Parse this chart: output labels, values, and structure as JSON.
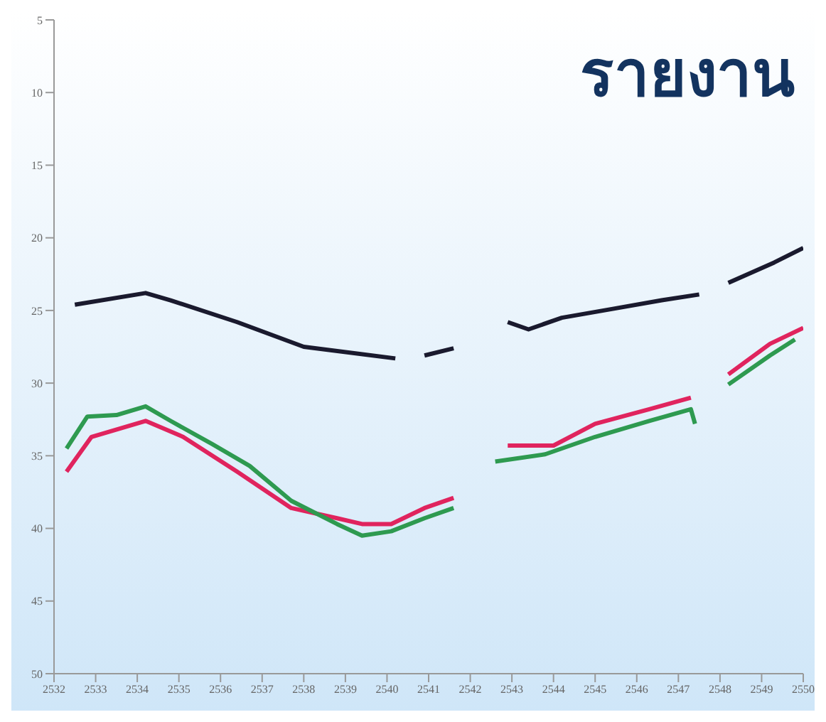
{
  "chart_data": {
    "type": "line",
    "title": "รายงาน",
    "xlim": [
      2532,
      2550
    ],
    "xticks": [
      2532,
      2533,
      2534,
      2535,
      2536,
      2537,
      2538,
      2539,
      2540,
      2541,
      2542,
      2543,
      2544,
      2545,
      2546,
      2547,
      2548,
      2549,
      2550
    ],
    "ylim": [
      50,
      5
    ],
    "yticks": [
      5,
      10,
      15,
      20,
      25,
      30,
      35,
      40,
      45,
      50
    ],
    "grid": false,
    "marker": "none",
    "line_style": "solid",
    "series": [
      {
        "color": "#1a1a2e",
        "x": [
          2532.5,
          2534.2,
          2534.8,
          2536.4,
          2538,
          2540.2,
          2540.5,
          2540.9,
          2541.6,
          2542,
          2542.9,
          2543.4,
          2544.2,
          2545.4,
          2546.6,
          2547.5,
          2547.9,
          2548.2,
          2549.3,
          2550
        ],
        "values": [
          24.6,
          23.8,
          24.3,
          25.8,
          27.5,
          28.3,
          null,
          28.1,
          27.6,
          null,
          25.8,
          26.3,
          25.5,
          24.9,
          24.3,
          23.9,
          null,
          23.1,
          21.7,
          20.7
        ]
      },
      {
        "color": "#e0245e",
        "x": [
          2532.3,
          2532.9,
          2534.2,
          2535.1,
          2536.4,
          2537.7,
          2538.8,
          2539.4,
          2540.1,
          2540.9,
          2541.6,
          2542,
          2542.9,
          2544,
          2545,
          2546.3,
          2547.3,
          2547.9,
          2548.2,
          2549.2,
          2550
        ],
        "values": [
          36.1,
          33.7,
          32.6,
          33.7,
          36.1,
          38.6,
          39.3,
          39.7,
          39.7,
          38.6,
          37.9,
          null,
          34.3,
          34.3,
          32.8,
          31.8,
          31.0,
          null,
          29.4,
          27.3,
          26.2
        ]
      },
      {
        "color": "#2e9a50",
        "x": [
          2532.3,
          2532.8,
          2533.5,
          2534.2,
          2534.8,
          2535.8,
          2536.7,
          2537.7,
          2538.8,
          2539.4,
          2540.1,
          2540.9,
          2541.6,
          2542,
          2542.6,
          2543.8,
          2545,
          2546.3,
          2547.3,
          2547.4,
          2547.9,
          2548.2,
          2549.2,
          2549.8
        ],
        "values": [
          34.5,
          32.3,
          32.2,
          31.6,
          32.6,
          34.2,
          35.7,
          38.1,
          39.7,
          40.5,
          40.2,
          39.3,
          38.6,
          null,
          35.4,
          34.9,
          33.7,
          32.6,
          31.8,
          32.8,
          null,
          30.1,
          28.1,
          27.0
        ]
      }
    ]
  }
}
